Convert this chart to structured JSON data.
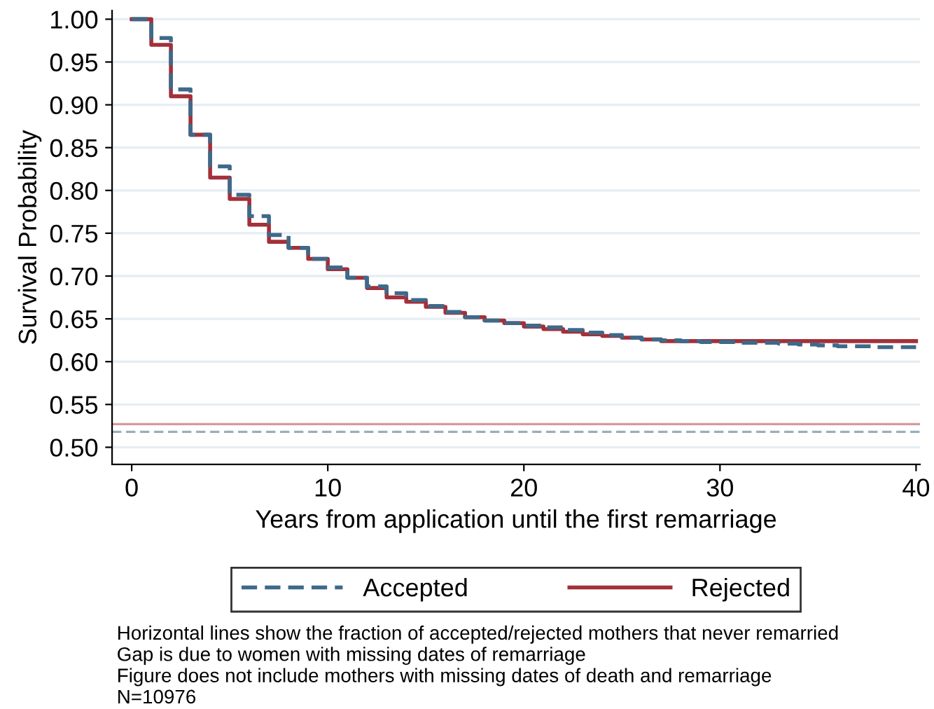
{
  "chart_data": {
    "type": "step",
    "xlabel": "Years from application until the first remarriage",
    "ylabel": "Survival Probability",
    "xlim": [
      -1,
      40.2
    ],
    "ylim": [
      0.48,
      1.01
    ],
    "xticks": [
      0,
      10,
      20,
      30,
      40
    ],
    "yticks": [
      {
        "value": 0.5,
        "label": "0.50"
      },
      {
        "value": 0.55,
        "label": "0.55"
      },
      {
        "value": 0.6,
        "label": "0.60"
      },
      {
        "value": 0.65,
        "label": "0.65"
      },
      {
        "value": 0.7,
        "label": "0.70"
      },
      {
        "value": 0.75,
        "label": "0.75"
      },
      {
        "value": 0.8,
        "label": "0.80"
      },
      {
        "value": 0.85,
        "label": "0.85"
      },
      {
        "value": 0.9,
        "label": "0.90"
      },
      {
        "value": 0.95,
        "label": "0.95"
      },
      {
        "value": 1.0,
        "label": "1.00"
      }
    ],
    "grid": "y",
    "legend": "bottom",
    "series": [
      {
        "name": "Accepted",
        "color": "#3e6a8a",
        "line_style": "dashed",
        "x": [
          0,
          1,
          2,
          3,
          4,
          5,
          6,
          7,
          8,
          9,
          10,
          11,
          12,
          13,
          14,
          15,
          16,
          17,
          18,
          19,
          20,
          21,
          22,
          23,
          24,
          25,
          26,
          27,
          28,
          29,
          30,
          31,
          32,
          33,
          34,
          35,
          36,
          37,
          38,
          39,
          40
        ],
        "values": [
          1.0,
          0.978,
          0.918,
          0.865,
          0.828,
          0.795,
          0.77,
          0.748,
          0.733,
          0.72,
          0.71,
          0.698,
          0.688,
          0.68,
          0.672,
          0.665,
          0.658,
          0.652,
          0.648,
          0.645,
          0.642,
          0.64,
          0.637,
          0.634,
          0.631,
          0.628,
          0.626,
          0.625,
          0.624,
          0.623,
          0.623,
          0.622,
          0.622,
          0.621,
          0.62,
          0.619,
          0.618,
          0.618,
          0.617,
          0.617,
          0.617
        ]
      },
      {
        "name": "Rejected",
        "color": "#a3303a",
        "line_style": "solid",
        "x": [
          0,
          1,
          2,
          3,
          4,
          5,
          6,
          7,
          8,
          9,
          10,
          11,
          12,
          13,
          14,
          15,
          16,
          17,
          18,
          19,
          20,
          21,
          22,
          23,
          24,
          25,
          26,
          27,
          40
        ],
        "values": [
          1.0,
          0.97,
          0.91,
          0.865,
          0.815,
          0.79,
          0.76,
          0.74,
          0.733,
          0.72,
          0.708,
          0.698,
          0.686,
          0.675,
          0.67,
          0.664,
          0.657,
          0.652,
          0.648,
          0.645,
          0.641,
          0.638,
          0.635,
          0.632,
          0.63,
          0.628,
          0.626,
          0.624,
          0.624
        ]
      }
    ],
    "ref_lines": [
      {
        "axis": "y",
        "value": 0.527,
        "color": "#d49a9e",
        "line_style": "solid"
      },
      {
        "axis": "y",
        "value": 0.518,
        "color": "#9aaebd",
        "line_style": "dashed"
      }
    ],
    "annotations": [
      "Horizontal lines show the fraction of accepted/rejected mothers that never remarried",
      "Gap is due to women with missing dates of remarriage",
      "Figure does not include mothers with missing dates of death and remarriage",
      "N=10976"
    ]
  }
}
